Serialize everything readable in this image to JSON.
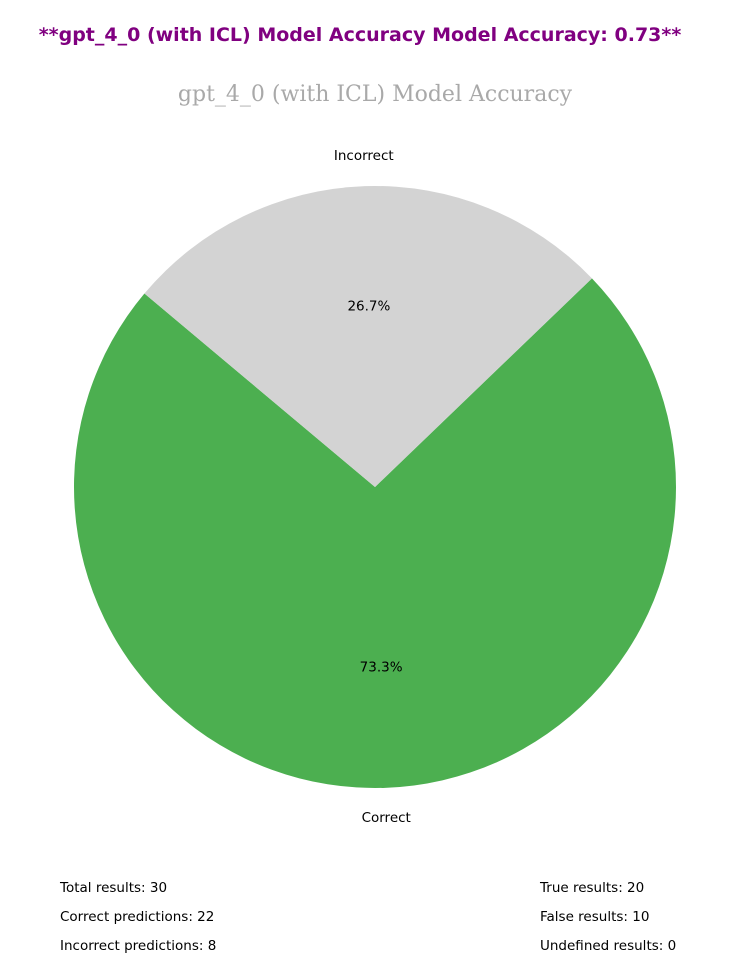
{
  "headline": "**gpt_4_0 (with ICL) Model Accuracy Model Accuracy: 0.73**",
  "chart_data": {
    "type": "pie",
    "title": "gpt_4_0 (with ICL) Model Accuracy",
    "categories": [
      "Correct",
      "Incorrect"
    ],
    "values": [
      73.3,
      26.7
    ],
    "value_labels": [
      "73.3%",
      "26.7%"
    ],
    "colors": [
      "#4caf50",
      "#d3d3d3"
    ],
    "start_angle_deg": 140,
    "direction": "counterclockwise",
    "legend": "none"
  },
  "stats": {
    "total": "Total results: 30",
    "correct": "Correct predictions: 22",
    "incorrect": "Incorrect predictions: 8",
    "true_results": "True results: 20",
    "false_results": "False results: 10",
    "undefined_results": "Undefined results: 0"
  }
}
